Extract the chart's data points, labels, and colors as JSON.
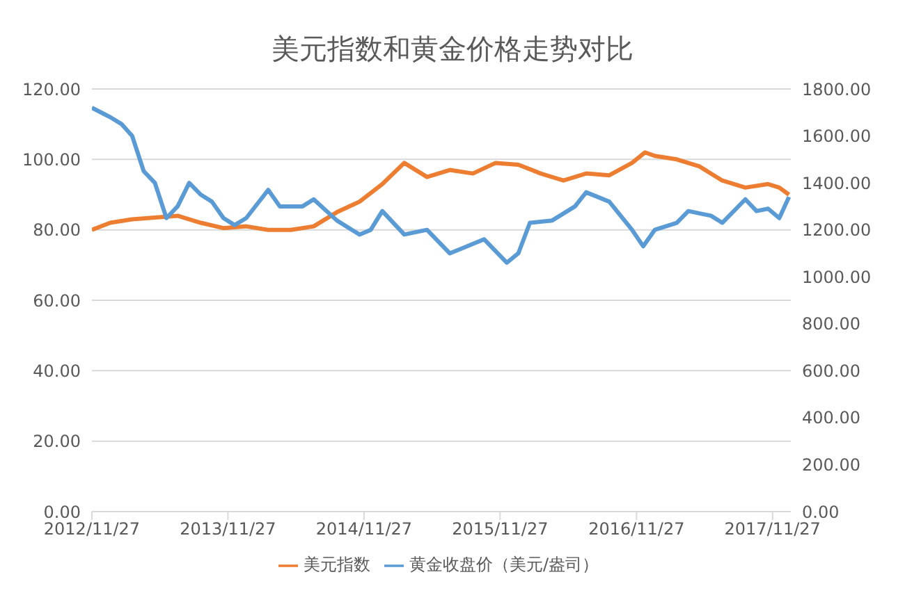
{
  "chart_data": {
    "type": "line",
    "title": "美元指数和黄金价格走势对比",
    "legend": "bottom",
    "grid": "y",
    "marker": "none",
    "line_style": "solid",
    "xlim": [
      "2012-11-27",
      "2018-01-15"
    ],
    "xticks": [
      {
        "value": "2012-11-27",
        "label": "2012/11/27"
      },
      {
        "value": "2013-11-27",
        "label": "2013/11/27"
      },
      {
        "value": "2014-11-27",
        "label": "2014/11/27"
      },
      {
        "value": "2015-11-27",
        "label": "2015/11/27"
      },
      {
        "value": "2016-11-27",
        "label": "2016/11/27"
      },
      {
        "value": "2017-11-27",
        "label": "2017/11/27"
      }
    ],
    "ylim": [
      0,
      120
    ],
    "yticks": [
      {
        "value": 0,
        "label": "0.00"
      },
      {
        "value": 20,
        "label": "20.00"
      },
      {
        "value": 40,
        "label": "40.00"
      },
      {
        "value": 60,
        "label": "60.00"
      },
      {
        "value": 80,
        "label": "80.00"
      },
      {
        "value": 100,
        "label": "100.00"
      },
      {
        "value": 120,
        "label": "120.00"
      }
    ],
    "y2lim": [
      0,
      1800
    ],
    "y2ticks": [
      {
        "value": 0,
        "label": "0.00"
      },
      {
        "value": 200,
        "label": "200.00"
      },
      {
        "value": 400,
        "label": "400.00"
      },
      {
        "value": 600,
        "label": "600.00"
      },
      {
        "value": 800,
        "label": "800.00"
      },
      {
        "value": 1000,
        "label": "1000.00"
      },
      {
        "value": 1200,
        "label": "1200.00"
      },
      {
        "value": 1400,
        "label": "1400.00"
      },
      {
        "value": 1600,
        "label": "1600.00"
      },
      {
        "value": 1800,
        "label": "1800.00"
      }
    ],
    "series": [
      {
        "name": "美元指数",
        "color": "#ed7d31",
        "x": [
          "2012-11-27",
          "2013-01-15",
          "2013-03-15",
          "2013-05-15",
          "2013-07-15",
          "2013-09-15",
          "2013-11-15",
          "2014-01-15",
          "2014-03-15",
          "2014-05-15",
          "2014-07-15",
          "2014-09-15",
          "2014-11-15",
          "2015-01-15",
          "2015-03-15",
          "2015-05-15",
          "2015-07-15",
          "2015-09-15",
          "2015-11-15",
          "2016-01-15",
          "2016-03-15",
          "2016-05-15",
          "2016-07-15",
          "2016-09-15",
          "2016-11-15",
          "2016-12-20",
          "2017-01-15",
          "2017-03-15",
          "2017-05-15",
          "2017-07-15",
          "2017-09-15",
          "2017-11-15",
          "2017-12-15",
          "2018-01-10"
        ],
        "values": [
          80,
          82,
          83,
          83.5,
          84,
          82,
          80.5,
          81,
          80,
          80,
          81,
          85,
          88,
          93,
          99,
          95,
          97,
          96,
          99,
          98.5,
          96,
          94,
          96,
          95.5,
          99,
          102,
          101,
          100,
          98,
          94,
          92,
          93,
          92,
          90
        ]
      },
      {
        "name": "黄金收盘价（美元/盎司）",
        "color": "#5b9bd5",
        "axis": "y2",
        "x": [
          "2012-11-27",
          "2013-01-15",
          "2013-02-15",
          "2013-03-15",
          "2013-04-15",
          "2013-05-15",
          "2013-06-15",
          "2013-07-15",
          "2013-08-15",
          "2013-09-15",
          "2013-10-15",
          "2013-11-15",
          "2013-12-15",
          "2014-01-15",
          "2014-03-15",
          "2014-04-15",
          "2014-06-15",
          "2014-07-15",
          "2014-09-15",
          "2014-11-15",
          "2014-12-15",
          "2015-01-15",
          "2015-03-15",
          "2015-05-15",
          "2015-07-15",
          "2015-08-15",
          "2015-10-15",
          "2015-12-15",
          "2016-01-15",
          "2016-02-15",
          "2016-04-15",
          "2016-06-15",
          "2016-07-15",
          "2016-09-15",
          "2016-11-15",
          "2016-12-15",
          "2017-01-15",
          "2017-03-15",
          "2017-04-15",
          "2017-06-15",
          "2017-07-15",
          "2017-09-15",
          "2017-10-15",
          "2017-11-15",
          "2017-12-15",
          "2018-01-10"
        ],
        "values": [
          1720,
          1680,
          1650,
          1600,
          1450,
          1400,
          1250,
          1300,
          1400,
          1350,
          1320,
          1250,
          1220,
          1250,
          1370,
          1300,
          1300,
          1330,
          1240,
          1180,
          1200,
          1280,
          1180,
          1200,
          1100,
          1120,
          1160,
          1060,
          1100,
          1230,
          1240,
          1300,
          1360,
          1320,
          1200,
          1130,
          1200,
          1230,
          1280,
          1260,
          1230,
          1330,
          1280,
          1290,
          1250,
          1340
        ]
      }
    ]
  }
}
